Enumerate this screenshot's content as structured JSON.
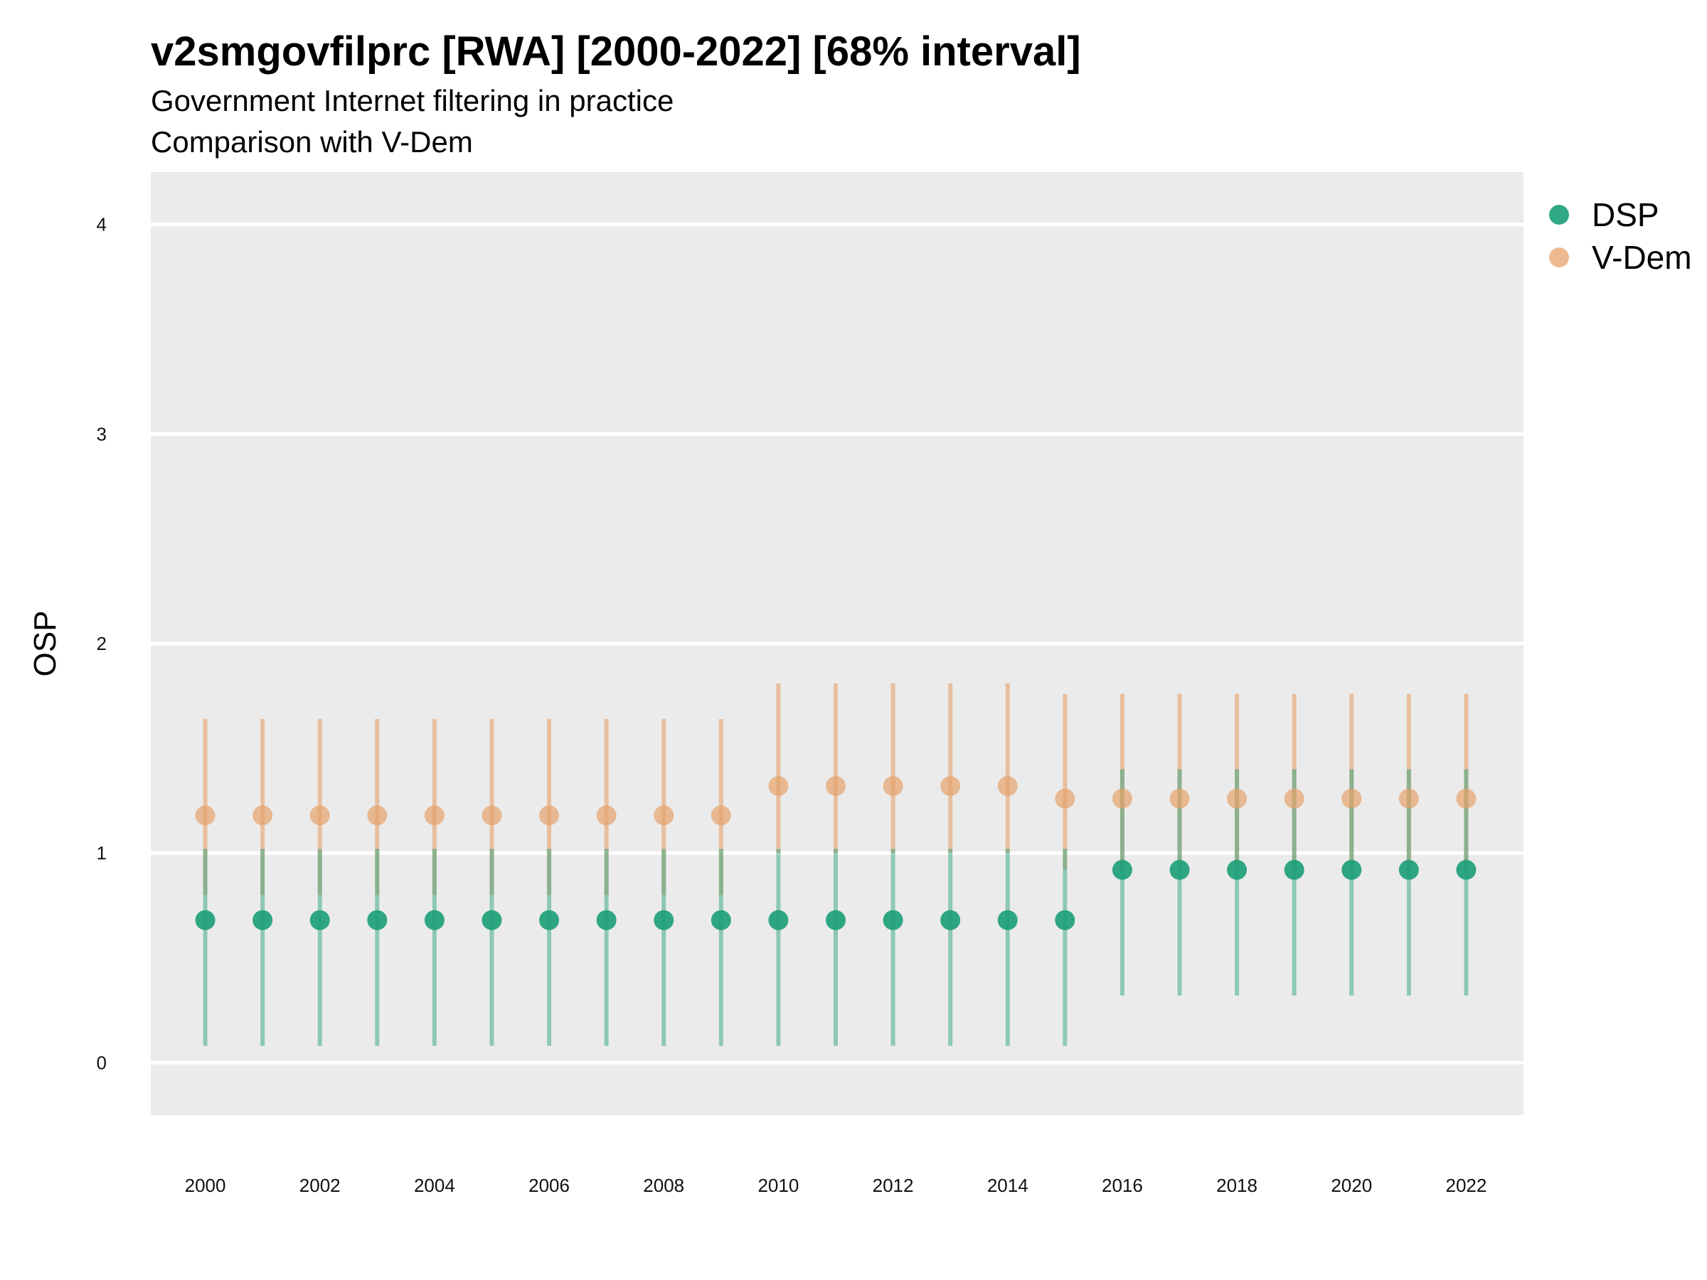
{
  "chart_data": {
    "type": "scatter",
    "title": "v2smgovfilprc [RWA] [2000-2022] [68% interval]",
    "subtitle_lines": [
      "Government Internet filtering in practice",
      "Comparison with V-Dem"
    ],
    "xlabel": "",
    "ylabel": "OSP",
    "x_ticks": [
      2000,
      2002,
      2004,
      2006,
      2008,
      2010,
      2012,
      2014,
      2016,
      2018,
      2020,
      2022
    ],
    "y_ticks": [
      0,
      1,
      2,
      3,
      4
    ],
    "xlim": [
      1999.05,
      2023.0
    ],
    "ylim": [
      -0.25,
      4.25
    ],
    "grid": true,
    "legend_position": "right",
    "x": [
      2000,
      2001,
      2002,
      2003,
      2004,
      2005,
      2006,
      2007,
      2008,
      2009,
      2010,
      2011,
      2012,
      2013,
      2014,
      2015,
      2016,
      2017,
      2018,
      2019,
      2020,
      2021,
      2022
    ],
    "series": [
      {
        "name": "V-Dem",
        "color": "#e6a26b",
        "values": [
          1.18,
          1.18,
          1.18,
          1.18,
          1.18,
          1.18,
          1.18,
          1.18,
          1.18,
          1.18,
          1.32,
          1.32,
          1.32,
          1.32,
          1.32,
          1.26,
          1.26,
          1.26,
          1.26,
          1.26,
          1.26,
          1.26,
          1.26
        ],
        "lower": [
          0.8,
          0.8,
          0.8,
          0.8,
          0.8,
          0.8,
          0.8,
          0.8,
          0.8,
          0.8,
          1.0,
          1.0,
          1.0,
          1.0,
          1.0,
          0.92,
          0.92,
          0.92,
          0.92,
          0.92,
          0.92,
          0.92,
          0.92
        ],
        "upper": [
          1.64,
          1.64,
          1.64,
          1.64,
          1.64,
          1.64,
          1.64,
          1.64,
          1.64,
          1.64,
          1.81,
          1.81,
          1.81,
          1.81,
          1.81,
          1.76,
          1.76,
          1.76,
          1.76,
          1.76,
          1.76,
          1.76,
          1.76
        ]
      },
      {
        "name": "DSP",
        "color": "#1b9e77",
        "values": [
          0.68,
          0.68,
          0.68,
          0.68,
          0.68,
          0.68,
          0.68,
          0.68,
          0.68,
          0.68,
          0.68,
          0.68,
          0.68,
          0.68,
          0.68,
          0.68,
          0.92,
          0.92,
          0.92,
          0.92,
          0.92,
          0.92,
          0.92
        ],
        "lower": [
          0.08,
          0.08,
          0.08,
          0.08,
          0.08,
          0.08,
          0.08,
          0.08,
          0.08,
          0.08,
          0.08,
          0.08,
          0.08,
          0.08,
          0.08,
          0.08,
          0.32,
          0.32,
          0.32,
          0.32,
          0.32,
          0.32,
          0.32
        ],
        "upper": [
          1.02,
          1.02,
          1.02,
          1.02,
          1.02,
          1.02,
          1.02,
          1.02,
          1.02,
          1.02,
          1.02,
          1.02,
          1.02,
          1.02,
          1.02,
          1.02,
          1.4,
          1.4,
          1.4,
          1.4,
          1.4,
          1.4,
          1.4
        ]
      }
    ],
    "legend": [
      {
        "name": "DSP",
        "color": "#1b9e77"
      },
      {
        "name": "V-Dem",
        "color": "#e6a26b"
      }
    ]
  }
}
